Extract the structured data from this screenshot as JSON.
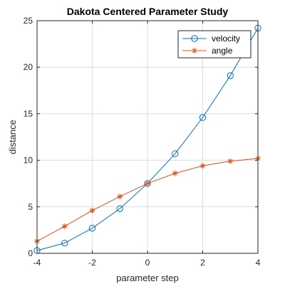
{
  "chart_data": {
    "type": "line",
    "title": "Dakota Centered Parameter Study",
    "xlabel": "parameter step",
    "ylabel": "distance",
    "xlim": [
      -4,
      4
    ],
    "ylim": [
      0,
      25
    ],
    "xticks": [
      -4,
      -2,
      0,
      2,
      4
    ],
    "yticks": [
      0,
      5,
      10,
      15,
      20,
      25
    ],
    "grid": true,
    "legend_location": "top-right",
    "x": [
      -4,
      -3,
      -2,
      -1,
      0,
      1,
      2,
      3,
      4
    ],
    "series": [
      {
        "name": "velocity",
        "marker": "circle",
        "color": "#0072BD",
        "values": [
          0.3,
          1.1,
          2.7,
          4.8,
          7.5,
          10.7,
          14.6,
          19.1,
          24.2
        ]
      },
      {
        "name": "angle",
        "marker": "asterisk",
        "color": "#D95319",
        "values": [
          1.3,
          2.9,
          4.6,
          6.1,
          7.5,
          8.6,
          9.4,
          9.9,
          10.2
        ]
      }
    ]
  }
}
